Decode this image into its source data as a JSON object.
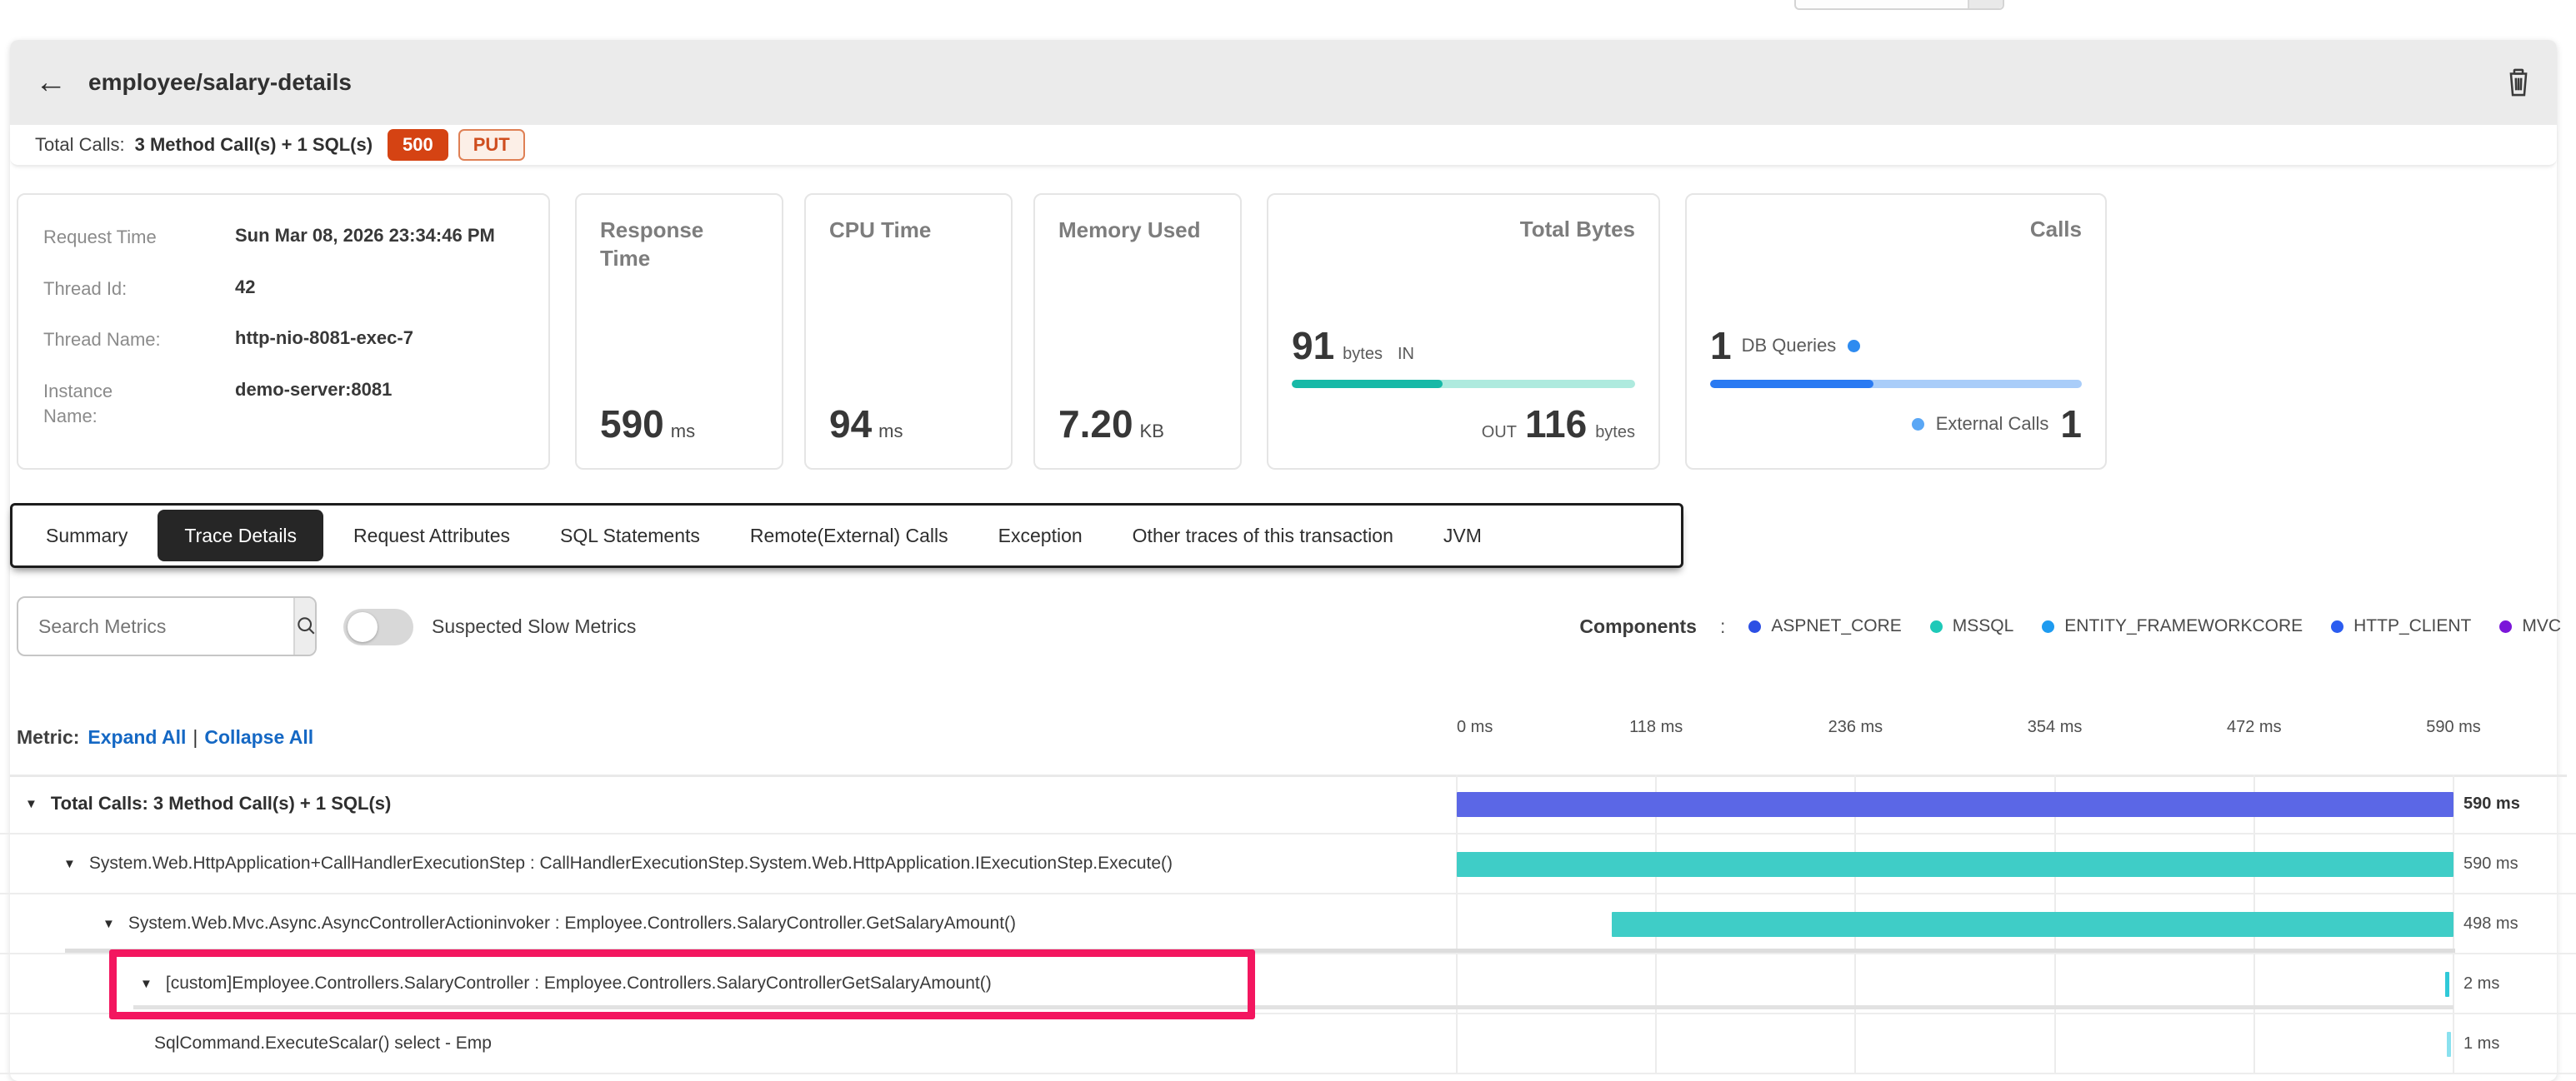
{
  "ui": {
    "back_glyph": "←",
    "caret_glyph": "▼"
  },
  "header": {
    "title": "employee/salary-details"
  },
  "subheader": {
    "label": "Total Calls:",
    "value": "3 Method Call(s) + 1 SQL(s)",
    "status_code": "500",
    "http_method": "PUT"
  },
  "request_info": {
    "rows": [
      {
        "label": "Request Time",
        "value": "Sun Mar 08, 2026 23:34:46 PM"
      },
      {
        "label": "Thread Id:",
        "value": "42"
      },
      {
        "label": "Thread Name:",
        "value": "http-nio-8081-exec-7"
      },
      {
        "label": "Instance Name:",
        "value": "demo-server:8081"
      }
    ]
  },
  "stat_cards": [
    {
      "title": "Response Time",
      "value": "590",
      "unit": "ms"
    },
    {
      "title": "CPU Time",
      "value": "94",
      "unit": "ms"
    },
    {
      "title": "Memory Used",
      "value": "7.20",
      "unit": "KB"
    }
  ],
  "total_bytes_card": {
    "title": "Total Bytes",
    "in_value": "91",
    "in_unit": "bytes",
    "in_label": "IN",
    "out_label": "OUT",
    "out_value": "116",
    "out_unit": "bytes",
    "bar_color_dark": "#17b9a7",
    "bar_color_light": "#aeeade"
  },
  "calls_card": {
    "title": "Calls",
    "db_value": "1",
    "db_label": "DB Queries",
    "ext_label": "External Calls",
    "ext_value": "1",
    "dot_color": "#2e8bf0",
    "dot_color_light": "#5aa7f5",
    "bar_color_dark": "#2a7af2",
    "bar_color_light": "#a9cdf9"
  },
  "tabs": {
    "items": [
      {
        "label": "Summary"
      },
      {
        "label": "Trace Details",
        "active": true
      },
      {
        "label": "Request Attributes"
      },
      {
        "label": "SQL Statements"
      },
      {
        "label": "Remote(External) Calls"
      },
      {
        "label": "Exception"
      },
      {
        "label": "Other traces of this transaction"
      },
      {
        "label": "JVM"
      }
    ]
  },
  "filter_bar": {
    "search_placeholder": "Search Metrics",
    "toggle_label": "Suspected Slow Metrics",
    "toggle_on": false
  },
  "components_legend": {
    "label": "Components",
    "separator": ":",
    "items": [
      {
        "name": "ASPNET_CORE",
        "color": "#2c4fe4"
      },
      {
        "name": "MSSQL",
        "color": "#1ec9b8"
      },
      {
        "name": "ENTITY_FRAMEWORKCORE",
        "color": "#1e9bf0"
      },
      {
        "name": "HTTP_CLIENT",
        "color": "#2b5cf0"
      },
      {
        "name": "MVC",
        "color": "#7b16d9"
      }
    ]
  },
  "metric_header": {
    "label": "Metric:",
    "expand": "Expand All",
    "separator": "|",
    "collapse": "Collapse All"
  },
  "chart_data": {
    "type": "bar",
    "subtype": "trace-waterfall",
    "xlim": [
      0,
      590
    ],
    "axis_ticks_ms": [
      0,
      118,
      236,
      354,
      472,
      590
    ],
    "axis_tick_labels": [
      "0 ms",
      "118 ms",
      "236 ms",
      "354 ms",
      "472 ms",
      "590 ms"
    ],
    "highlight_color": "#f3165f",
    "rows": [
      {
        "name": "Total Calls: 3 Method Call(s) + 1 SQL(s)",
        "depth": 0,
        "caret": true,
        "bold": true,
        "highlighted": false,
        "start_ms": 0,
        "duration_ms": 590,
        "duration_label": "590 ms",
        "color": "#5b67e6"
      },
      {
        "name": "System.Web.HttpApplication+CallHandlerExecutionStep : CallHandlerExecutionStep.System.Web.HttpApplication.IExecutionStep.Execute()",
        "depth": 1,
        "caret": true,
        "bold": false,
        "highlighted": false,
        "start_ms": 0,
        "duration_ms": 590,
        "duration_label": "590 ms",
        "color": "#3fcdc7"
      },
      {
        "name": "System.Web.Mvc.Async.AsyncControllerActioninvoker : Employee.Controllers.SalaryController.GetSalaryAmount()",
        "depth": 2,
        "caret": true,
        "bold": false,
        "highlighted": false,
        "start_ms": 92,
        "duration_ms": 498,
        "duration_label": "498 ms",
        "color": "#3fcdc7"
      },
      {
        "name": "[custom]Employee.Controllers.SalaryController : Employee.Controllers.SalaryControllerGetSalaryAmount()",
        "depth": 3,
        "caret": true,
        "bold": false,
        "highlighted": true,
        "start_ms": 585,
        "duration_ms": 2,
        "duration_label": "2 ms",
        "color": "#30c9d8"
      },
      {
        "name": "SqlCommand.ExecuteScalar() select - Emp",
        "depth": 4,
        "caret": false,
        "bold": false,
        "highlighted": false,
        "start_ms": 586,
        "duration_ms": 1,
        "duration_label": "1 ms",
        "color": "#8ae1ef"
      }
    ]
  }
}
